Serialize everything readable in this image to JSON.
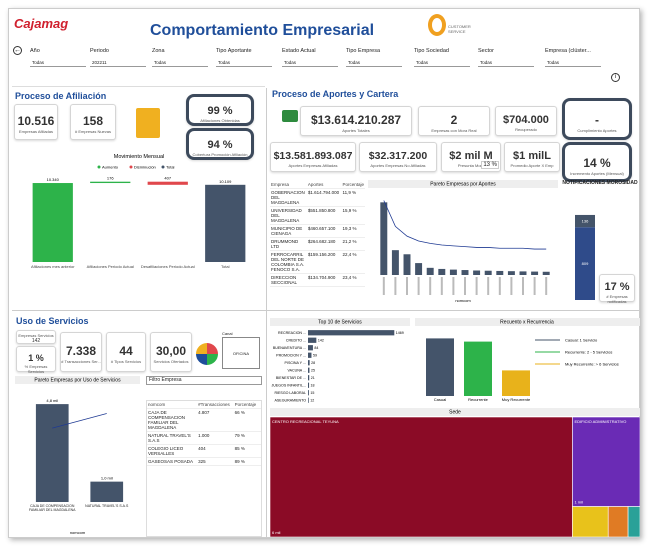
{
  "header": {
    "logo": "Cajamag",
    "title": "Comportamiento Empresarial",
    "partner": "CUSTOMER SERVICE"
  },
  "filters": [
    {
      "label": "Año",
      "value": "Todas"
    },
    {
      "label": "Periodo",
      "value": "202211"
    },
    {
      "label": "Zona",
      "value": "Todas"
    },
    {
      "label": "Tipo Aportante",
      "value": "Todas"
    },
    {
      "label": "Estado Actual",
      "value": "Todas"
    },
    {
      "label": "Tipo Empresa",
      "value": "Todas"
    },
    {
      "label": "Tipo Sociedad",
      "value": "Todas"
    },
    {
      "label": "Sector",
      "value": "Todas"
    },
    {
      "label": "Empresa (clúster...",
      "value": "Todas"
    }
  ],
  "afiliacion": {
    "title": "Proceso de Afiliación",
    "kpis": [
      {
        "value": "10.516",
        "label": "Empresas Afiliadas"
      },
      {
        "value": "158",
        "label": "# Empresas Nuevas"
      },
      {
        "value": "99 %",
        "label": "Afiliaciones Obtenidas"
      },
      {
        "value": "94 %",
        "label": "Cobertura Promoción Afiliación"
      }
    ],
    "chart_data": {
      "type": "waterfall",
      "title": "Movimiento Mensual",
      "legend": [
        {
          "name": "Aumento",
          "color": "#2db34a"
        },
        {
          "name": "Disminución",
          "color": "#e0474c"
        },
        {
          "name": "Total",
          "color": "#44546a"
        }
      ],
      "categories": [
        "Afiliaciones mes anterior",
        "Afiliaciones Periodo Actual",
        "Desafiliaciones Periodo Actual",
        "Total"
      ],
      "values": [
        10340,
        176,
        407,
        10109
      ],
      "value_labels": [
        "10.340",
        "176",
        "407",
        "10.109"
      ],
      "bar_colors": [
        "#2db34a",
        "#2db34a",
        "#e0474c",
        "#44546a"
      ],
      "ylim": [
        0,
        11000
      ]
    }
  },
  "aportes": {
    "title": "Proceso de Aportes y Cartera",
    "kpis": [
      {
        "value": "$13.614.210.287",
        "label": "Aportes Totales"
      },
      {
        "value": "2",
        "label": "Empresas con Mora Real"
      },
      {
        "value": "$704.000",
        "label": "Recuperado"
      },
      {
        "value": "-",
        "label": "Cumplimiento Aportes"
      },
      {
        "value": "$13.581.893.087",
        "label": "Aportes Empresas Afiliadas"
      },
      {
        "value": "$32.317.200",
        "label": "Aportes Empresas No Afiliadas"
      },
      {
        "value": "$2 mil M",
        "label": "Presunta Mora",
        "badge": "13 %"
      },
      {
        "value": "$1 milL",
        "label": "Promedio Aporte X Emp"
      },
      {
        "value": "14 %",
        "label": "Incremento Aportes (Mensual)"
      }
    ],
    "table": {
      "columns": [
        "Empresa",
        "Aportes",
        "Porcentaje"
      ],
      "rows": [
        [
          "GOBERNACION DEL MAGDALENA",
          "$1.614.794.000",
          "11,9 %"
        ],
        [
          "UNIVERSIDAD DEL MAGDALENA",
          "$551.850.800",
          "15,9 %"
        ],
        [
          "MUNICIPIO DE CIENAGA",
          "$460.657.100",
          "19,3 %"
        ],
        [
          "DRUMMOND LTD",
          "$264.682.180",
          "21,2 %"
        ],
        [
          "FERROCARRIL DEL NORTE DE COLOMBIA S.A. FENOCO S.A.",
          "$159.156.200",
          "22,4 %"
        ],
        [
          "DIRECCION SECCIONAL",
          "$134.704.900",
          "23,4 %"
        ]
      ]
    },
    "pareto": {
      "type": "bar",
      "title": "Pareto Empresas por Aportes",
      "xlabel": "nomcom",
      "color": "#44546a",
      "line_color": "#1f3a93",
      "values": [
        1614794000,
        551850800,
        460657100,
        264682180,
        159156200,
        134704900,
        120000000,
        110000000,
        100000000,
        95000000,
        90000000,
        85000000,
        80000000,
        76000000,
        72000000
      ],
      "line": [
        92,
        60,
        48,
        42,
        39,
        37,
        36,
        35,
        34,
        34,
        33,
        33,
        33,
        32,
        32
      ],
      "ylim": [
        0,
        1800000000
      ],
      "y2lim": [
        0,
        100
      ]
    },
    "notificaciones": {
      "type": "stacked_bar",
      "title": "NOTIFICACIONES MOROSIDAD",
      "series": [
        {
          "color": "#2f4b8a",
          "values": [
            809
          ]
        },
        {
          "color": "#44546a",
          "values": [
            136
          ]
        }
      ],
      "ylim": [
        0,
        1000
      ],
      "kpi": {
        "value": "17 %",
        "label": "# Empresas notificadas"
      }
    }
  },
  "servicios": {
    "title": "Uso de Servicios",
    "kpis": [
      {
        "value": "142",
        "label": "Empresas Servicios"
      },
      {
        "value": "1 %",
        "label": "% Empresas Servicios"
      },
      {
        "value": "7.338",
        "label": "# Transacciones Ser..."
      },
      {
        "value": "44",
        "label": "# Tipos Servicios"
      },
      {
        "value": "30,00",
        "label": "Servicios Ofertados"
      }
    ],
    "canal": {
      "label": "Canal",
      "value": "OFICINA"
    },
    "pareto": {
      "type": "bar",
      "title": "Pareto Empresas por Uso de Servicios",
      "xlabel": "nomcom",
      "color": "#44546a",
      "line_color": "#1f3a93",
      "categories": [
        "CAJA DE COMPENSACION FAMILIAR DEL MAGDALENA",
        "NATURAL TRAVEL'S S.A.S"
      ],
      "values": [
        4807,
        1000
      ],
      "value_labels": [
        "4,8 mil",
        "1,0 mil"
      ],
      "line": [
        66,
        79
      ],
      "ylim": [
        0,
        5500
      ],
      "y2lim": [
        0,
        100
      ]
    },
    "filter": {
      "label": "Filtro Empresa"
    },
    "table": {
      "columns": [
        "nomcom",
        "#Transacciones",
        "Porcentaje"
      ],
      "rows": [
        [
          "CAJA DE COMPENSACION FAMILIAR DEL MAGDALENA",
          "4.807",
          "66 %"
        ],
        [
          "NATURAL TRAVEL'S S.A.S",
          "1.000",
          "79 %"
        ],
        [
          "COLEGIO LICEO VERSALLES",
          "404",
          "85 %"
        ],
        [
          "GASEOSAS POSADA",
          "325",
          "89 %"
        ]
      ]
    },
    "top10": {
      "type": "hbar",
      "title": "Top 10 de Servicios",
      "color": "#44546a",
      "categories": [
        "RECREACION ...",
        "CREDITO ...",
        "BUENAVENTURA ...",
        "PROMOCION Y ...",
        "PISCINA Y ...",
        "VACUNA ...",
        "BIENESTAR DE ...",
        "JUEGOS INFANTIL...",
        "RIESGO LABORAL",
        "ASEGURAMIENTO"
      ],
      "values": [
        1469,
        142,
        84,
        59,
        28,
        25,
        21,
        18,
        15,
        12
      ],
      "xlim": [
        0,
        1600
      ]
    },
    "recuento": {
      "type": "bar",
      "title": "Recuento x Recurrencia",
      "categories": [
        "Casual",
        "Recurrente",
        "Muy Recurrente"
      ],
      "colors": [
        "#44546a",
        "#2db34a",
        "#e8b21b"
      ],
      "legend": [
        "Casual: 1 Servicio",
        "Recurrente: 2 - 5 Servicios",
        "Muy Recurrente: > 6 Servicios"
      ],
      "values": [
        72,
        68,
        32
      ],
      "ylim": [
        0,
        80
      ]
    },
    "sede": {
      "type": "treemap",
      "title": "Sede",
      "categories": [
        "CENTRO RECREACIONAL TEYUNA",
        "EDIFICIO ADMINISTRATIVO",
        null,
        null,
        null
      ],
      "values": [
        6000,
        1000,
        180,
        100,
        60
      ],
      "value_labels": [
        "6 mil",
        "1 mil",
        null,
        null,
        null
      ],
      "colors": [
        "#8b0b26",
        "#6a2bb5",
        "#e8c21b",
        "#e07b24",
        "#2aa198"
      ]
    }
  }
}
